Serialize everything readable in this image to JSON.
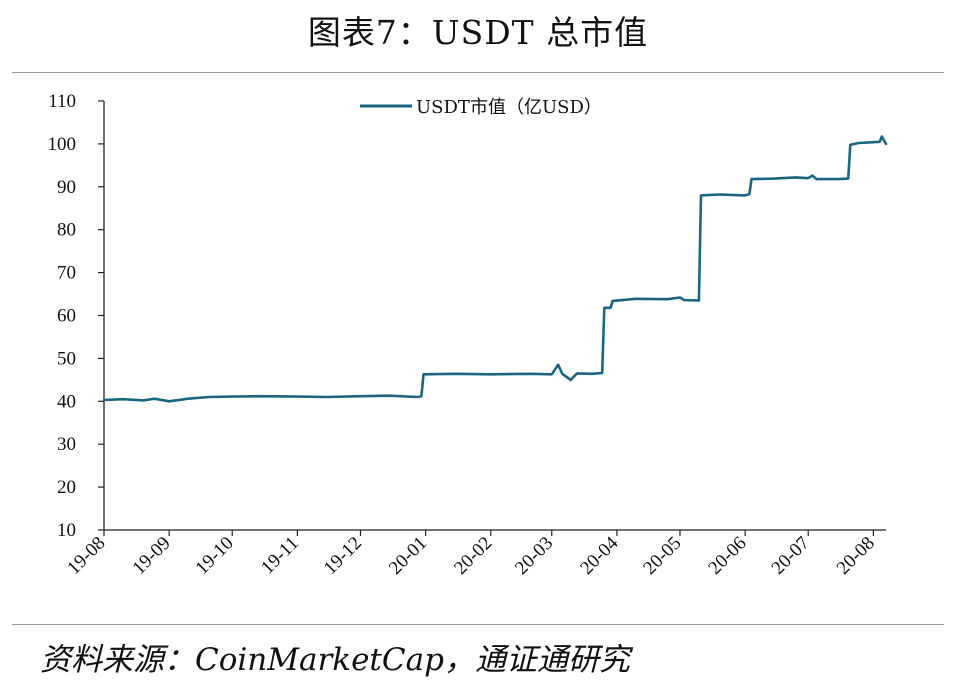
{
  "figure": {
    "title": "图表7：USDT 总市值",
    "source": "资料来源：CoinMarketCap，通证通研究"
  },
  "colors": {
    "series": "#1a6580",
    "axis": "#222222"
  },
  "chart_data": {
    "type": "line",
    "title": "",
    "xlabel": "",
    "ylabel": "",
    "ylim": [
      10,
      110
    ],
    "yticks": [
      10,
      20,
      30,
      40,
      50,
      60,
      70,
      80,
      90,
      100,
      110
    ],
    "xtick_labels": [
      "19-08",
      "19-09",
      "19-10",
      "19-11",
      "19-12",
      "20-01",
      "20-02",
      "20-03",
      "20-04",
      "20-05",
      "20-06",
      "20-07",
      "20-08"
    ],
    "xlim": [
      "2019-08-01",
      "2020-08-07"
    ],
    "grid": false,
    "legend_position": "top",
    "series": [
      {
        "name": "USDT市值（亿USD）",
        "points": [
          [
            "2019-08-01",
            40.3
          ],
          [
            "2019-08-10",
            40.5
          ],
          [
            "2019-08-20",
            40.2
          ],
          [
            "2019-08-25",
            40.6
          ],
          [
            "2019-09-01",
            40.0
          ],
          [
            "2019-09-10",
            40.6
          ],
          [
            "2019-09-20",
            41.0
          ],
          [
            "2019-10-01",
            41.1
          ],
          [
            "2019-10-15",
            41.2
          ],
          [
            "2019-11-01",
            41.1
          ],
          [
            "2019-11-15",
            41.0
          ],
          [
            "2019-12-01",
            41.2
          ],
          [
            "2019-12-15",
            41.3
          ],
          [
            "2019-12-28",
            41.0
          ],
          [
            "2019-12-30",
            41.2
          ],
          [
            "2019-12-31",
            46.3
          ],
          [
            "2020-01-15",
            46.4
          ],
          [
            "2020-02-01",
            46.3
          ],
          [
            "2020-02-20",
            46.4
          ],
          [
            "2020-03-01",
            46.3
          ],
          [
            "2020-03-04",
            48.5
          ],
          [
            "2020-03-06",
            46.4
          ],
          [
            "2020-03-10",
            45.0
          ],
          [
            "2020-03-13",
            46.5
          ],
          [
            "2020-03-20",
            46.4
          ],
          [
            "2020-03-25",
            46.6
          ],
          [
            "2020-03-26",
            61.8
          ],
          [
            "2020-03-29",
            61.8
          ],
          [
            "2020-03-30",
            63.4
          ],
          [
            "2020-04-10",
            63.9
          ],
          [
            "2020-04-25",
            63.8
          ],
          [
            "2020-05-01",
            64.2
          ],
          [
            "2020-05-03",
            63.6
          ],
          [
            "2020-05-10",
            63.5
          ],
          [
            "2020-05-11",
            88.0
          ],
          [
            "2020-05-20",
            88.2
          ],
          [
            "2020-06-01",
            88.0
          ],
          [
            "2020-06-03",
            88.3
          ],
          [
            "2020-06-04",
            91.8
          ],
          [
            "2020-06-15",
            91.9
          ],
          [
            "2020-06-25",
            92.2
          ],
          [
            "2020-07-01",
            92.0
          ],
          [
            "2020-07-03",
            92.6
          ],
          [
            "2020-07-05",
            91.8
          ],
          [
            "2020-07-15",
            91.8
          ],
          [
            "2020-07-20",
            91.9
          ],
          [
            "2020-07-21",
            99.8
          ],
          [
            "2020-07-25",
            100.2
          ],
          [
            "2020-08-01",
            100.4
          ],
          [
            "2020-08-04",
            100.5
          ],
          [
            "2020-08-05",
            101.7
          ],
          [
            "2020-08-07",
            100.0
          ]
        ]
      }
    ]
  }
}
